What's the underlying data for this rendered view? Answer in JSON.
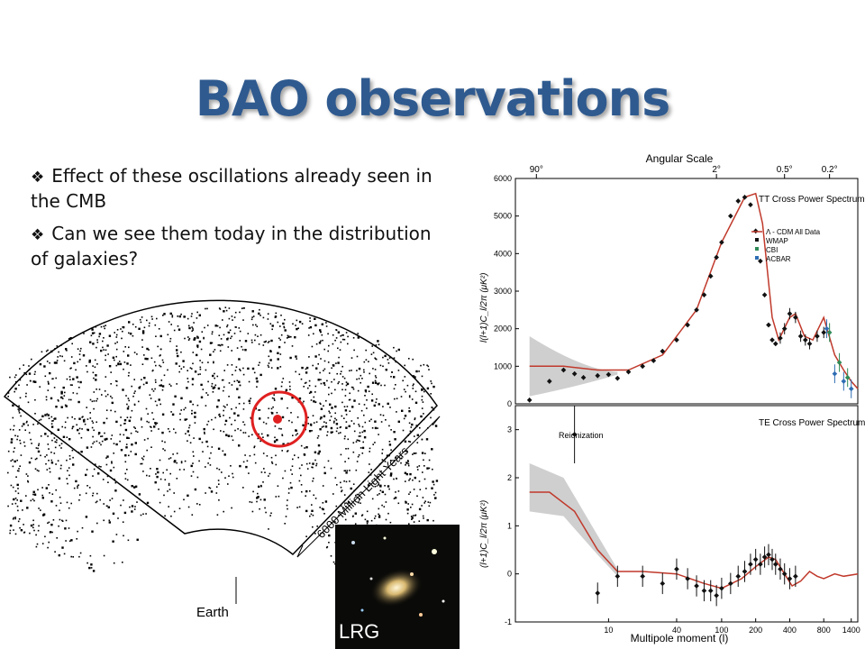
{
  "slide": {
    "title": "BAO observations",
    "bullets": [
      {
        "icon": "diamond-bullet-icon",
        "text": "Effect of these oscillations already seen in the CMB"
      },
      {
        "icon": "diamond-bullet-icon",
        "text": "Can we see them today in the distribution of galaxies?"
      }
    ]
  },
  "survey": {
    "distance_label": "6000 Million Light Years",
    "origin_label": "Earth",
    "circle_color": "#e02020"
  },
  "inset": {
    "label": "LRG"
  },
  "chart_data": [
    {
      "type": "scatter",
      "top_axis_title": "Angular Scale",
      "top_ticks": [
        "90°",
        "2°",
        "0.5°",
        "0.2°"
      ],
      "ylabel": "l(l+1)C_l/2π (μK²)",
      "yticks": [
        0,
        1000,
        2000,
        3000,
        4000,
        5000,
        6000
      ],
      "ylim": [
        0,
        6000
      ],
      "legend_title": "TT Cross Power Spectrum",
      "legend": [
        {
          "name": "Λ - CDM All Data",
          "color": "#c0392b"
        },
        {
          "name": "WMAP",
          "color": "#111111"
        },
        {
          "name": "CBI",
          "color": "#2e8b57"
        },
        {
          "name": "ACBAR",
          "color": "#2e6db4"
        }
      ],
      "series": [
        {
          "name": "WMAP",
          "x": [
            2,
            3,
            4,
            5,
            6,
            8,
            10,
            12,
            15,
            20,
            25,
            30,
            40,
            50,
            60,
            70,
            80,
            90,
            100,
            120,
            140,
            160,
            180,
            200,
            220,
            240,
            260,
            280,
            300,
            330,
            360,
            400,
            450,
            500,
            550,
            600,
            700,
            800
          ],
          "values": [
            100,
            600,
            900,
            800,
            700,
            750,
            780,
            680,
            850,
            1000,
            1150,
            1400,
            1700,
            2100,
            2500,
            2900,
            3400,
            3900,
            4300,
            5000,
            5400,
            5500,
            5300,
            4600,
            3800,
            2900,
            2100,
            1700,
            1600,
            1750,
            2000,
            2400,
            2300,
            1800,
            1700,
            1600,
            1800,
            1900
          ]
        },
        {
          "name": "CBI",
          "x": [
            900,
            1100,
            1300
          ],
          "values": [
            1900,
            1100,
            700
          ]
        },
        {
          "name": "ACBAR",
          "x": [
            850,
            1000,
            1200,
            1400
          ],
          "values": [
            2000,
            800,
            600,
            400
          ]
        }
      ]
    },
    {
      "type": "scatter",
      "xlabel": "Multipole moment (l)",
      "xticks": [
        "10",
        "40",
        "100",
        "200",
        "400",
        "800",
        "1400"
      ],
      "ylabel": "(l+1)C_l/2π (μK²)",
      "yticks": [
        -1,
        0,
        1,
        2,
        3
      ],
      "ylim": [
        -1,
        3.5
      ],
      "legend_title": "TE Cross Power Spectrum",
      "annotation": "Reionization",
      "series": [
        {
          "name": "WMAP",
          "x": [
            5,
            8,
            12,
            20,
            30,
            40,
            50,
            60,
            70,
            80,
            90,
            100,
            120,
            140,
            160,
            180,
            200,
            220,
            240,
            260,
            280,
            300,
            330,
            360,
            400,
            450
          ],
          "values": [
            2.9,
            -0.4,
            -0.05,
            -0.05,
            -0.2,
            0.1,
            -0.1,
            -0.25,
            -0.35,
            -0.35,
            -0.45,
            -0.3,
            -0.2,
            -0.05,
            0.05,
            0.2,
            0.3,
            0.2,
            0.35,
            0.4,
            0.3,
            0.2,
            0.1,
            0.0,
            -0.1,
            -0.05
          ]
        }
      ]
    }
  ]
}
